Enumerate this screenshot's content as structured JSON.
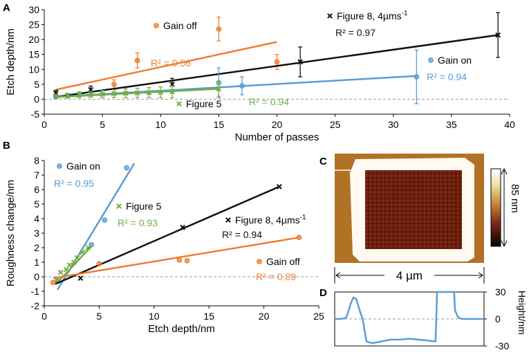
{
  "colors": {
    "orange": "#ED7D31",
    "black": "#111111",
    "blue": "#5B9BD5",
    "green": "#70AD47",
    "grid": "#9a9a9a"
  },
  "chart_data": [
    {
      "panel": "A",
      "type": "scatter",
      "xlabel": "Number of passes",
      "ylabel": "Etch depth/nm",
      "xlim": [
        0,
        40
      ],
      "ylim": [
        -5,
        30
      ],
      "xticks": [
        0,
        5,
        10,
        15,
        20,
        25,
        30,
        35,
        40
      ],
      "yticks": [
        -5,
        0,
        5,
        10,
        15,
        20,
        25,
        30
      ],
      "series": [
        {
          "name": "Gain off",
          "marker": "circle",
          "color": "#ED7D31",
          "r2": "R² = 0.56",
          "x": [
            1,
            6,
            8,
            15,
            20
          ],
          "y": [
            1.2,
            5,
            13,
            23.5,
            12.5
          ],
          "err": [
            0.6,
            1.5,
            2.5,
            4,
            2.5
          ],
          "fit": [
            [
              1,
              3.2
            ],
            [
              20,
              19.2
            ]
          ]
        },
        {
          "name": "Figure 8, 4µms",
          "superscript": "-1",
          "marker": "x",
          "color": "#111111",
          "r2": "R² = 0.97",
          "x": [
            1,
            4,
            11,
            22,
            39
          ],
          "y": [
            2,
            3.2,
            5,
            12.5,
            21.5
          ],
          "err": [
            1,
            1.2,
            2,
            5,
            7.5
          ],
          "fit": [
            [
              1,
              0.8
            ],
            [
              39,
              21.5
            ]
          ]
        },
        {
          "name": "Gain on",
          "marker": "circle",
          "color": "#5B9BD5",
          "r2": "R² = 0.94",
          "x": [
            1,
            15,
            17,
            32
          ],
          "y": [
            0.8,
            5.5,
            4.5,
            7.5
          ],
          "err": [
            0.5,
            5,
            3,
            9
          ],
          "fit": [
            [
              1,
              0.8
            ],
            [
              32,
              7.8
            ]
          ]
        },
        {
          "name": "Figure 5",
          "marker": "x",
          "color": "#70AD47",
          "r2": "R² = 0.94",
          "x": [
            1,
            2,
            3,
            4,
            5,
            6,
            7,
            8,
            9,
            10,
            11,
            15
          ],
          "y": [
            1,
            1.2,
            1.5,
            1.6,
            1.7,
            1.9,
            2,
            2.1,
            2.2,
            2.3,
            2.5,
            3.5
          ],
          "err": [
            0.6,
            0.8,
            1,
            1,
            1.2,
            1.3,
            1.5,
            1.6,
            1.7,
            1.8,
            2,
            2.5
          ],
          "fit": [
            [
              1,
              0.7
            ],
            [
              15,
              3.5
            ]
          ]
        }
      ]
    },
    {
      "panel": "B",
      "type": "scatter",
      "xlabel": "Etch depth/nm",
      "ylabel": "Roughness change/nm",
      "xlim": [
        0,
        25
      ],
      "ylim": [
        -2,
        8
      ],
      "xticks": [
        0,
        5,
        10,
        15,
        20,
        25
      ],
      "yticks": [
        -2,
        -1,
        0,
        1,
        2,
        3,
        4,
        5,
        6,
        7,
        8
      ],
      "series": [
        {
          "name": "Gain on",
          "marker": "circle",
          "color": "#5B9BD5",
          "r2": "R² = 0.95",
          "x": [
            1.2,
            4.3,
            5.5,
            7.5
          ],
          "y": [
            -0.3,
            2.2,
            3.9,
            7.5
          ],
          "fit": [
            [
              1.2,
              -0.9
            ],
            [
              8.2,
              7.8
            ]
          ]
        },
        {
          "name": "Figure 5",
          "marker": "x",
          "color": "#70AD47",
          "r2": "R² = 0.93",
          "x": [
            1.2,
            1.5,
            2.0,
            2.3,
            2.7,
            3.0,
            3.5,
            4.0
          ],
          "y": [
            -0.3,
            0.3,
            0.5,
            0.8,
            1.0,
            1.3,
            1.7,
            2.0
          ],
          "fit": [
            [
              1.2,
              -0.4
            ],
            [
              4.3,
              2.1
            ]
          ]
        },
        {
          "name": "Figure 8, 4µms",
          "superscript": "-1",
          "marker": "x",
          "color": "#111111",
          "r2": "R² = 0.94",
          "x": [
            3.3,
            12.6,
            21.4
          ],
          "y": [
            -0.1,
            3.4,
            6.2
          ],
          "fit": [
            [
              1.0,
              -0.5
            ],
            [
              21.4,
              6.2
            ]
          ]
        },
        {
          "name": "Gain off",
          "marker": "circle",
          "color": "#ED7D31",
          "r2": "R² = 0.89",
          "x": [
            0.8,
            5.0,
            12.3,
            13.0,
            23.2
          ],
          "y": [
            -0.4,
            0.9,
            1.15,
            1.1,
            2.7
          ],
          "fit": [
            [
              0.8,
              -0.1
            ],
            [
              23.2,
              2.7
            ]
          ]
        }
      ]
    },
    {
      "panel": "D",
      "type": "line",
      "ylabel": "Height/nm",
      "ylim": [
        -30,
        30
      ],
      "yticks": [
        30,
        0,
        -30
      ],
      "xlim": [
        0,
        4
      ],
      "series": [
        {
          "name": "height profile",
          "color": "#5B9BD5",
          "x": [
            0,
            0.15,
            0.3,
            0.35,
            0.42,
            0.5,
            0.58,
            0.68,
            0.75,
            0.85,
            1.0,
            1.25,
            1.5,
            1.75,
            2.0,
            2.25,
            2.5,
            2.7,
            2.72,
            2.74,
            2.8,
            2.95,
            3.1,
            3.2,
            3.22,
            3.3,
            3.4,
            3.6,
            3.8,
            4.0
          ],
          "y": [
            0,
            0,
            1,
            6,
            16,
            24,
            22,
            8,
            0,
            -25,
            -27,
            -25,
            -23,
            -23,
            -22,
            -23,
            -24,
            -25,
            0,
            30,
            30,
            30,
            30,
            30,
            10,
            2,
            0,
            0,
            0,
            0
          ]
        }
      ]
    }
  ],
  "labels": {
    "A": "A",
    "B": "B",
    "C": "C",
    "D": "D",
    "colorbar": "85 nm",
    "scale": "4 µm"
  }
}
